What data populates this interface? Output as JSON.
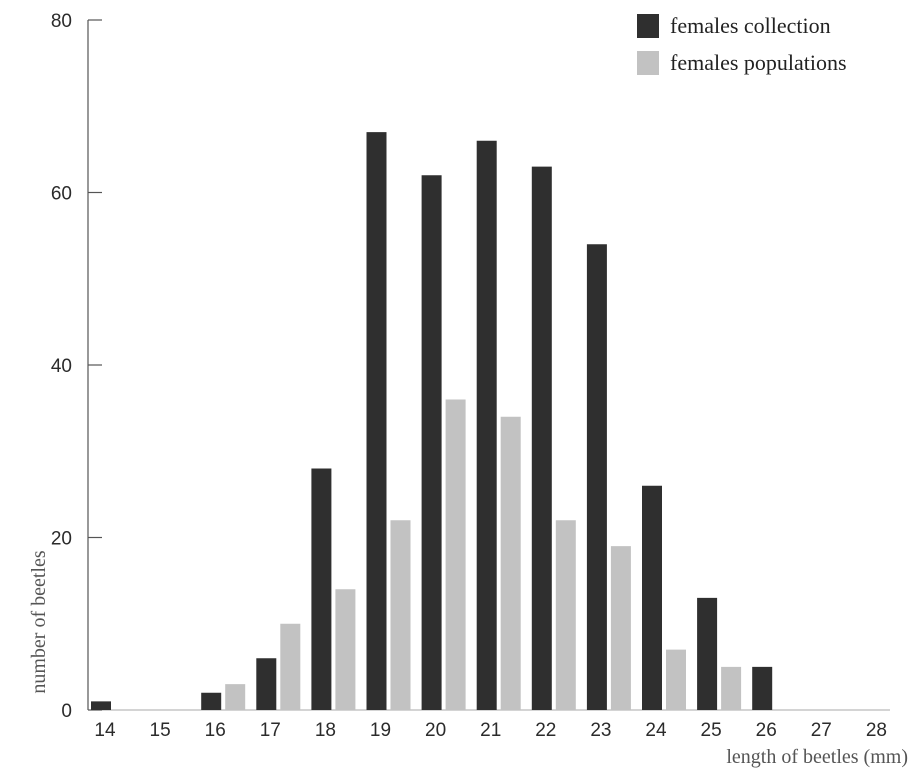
{
  "chart_data": {
    "type": "bar",
    "title": "",
    "xlabel": "length of beetles (mm)",
    "ylabel": "number of beetles",
    "ylim": [
      0,
      80
    ],
    "yticks": [
      0,
      20,
      40,
      60,
      80
    ],
    "categories": [
      "14",
      "15",
      "16",
      "17",
      "18",
      "19",
      "20",
      "21",
      "22",
      "23",
      "24",
      "25",
      "26",
      "27",
      "28"
    ],
    "series": [
      {
        "name": "females collection",
        "color": "#2f2f2f",
        "values": [
          1,
          0,
          2,
          6,
          28,
          67,
          62,
          66,
          63,
          54,
          26,
          13,
          5,
          0,
          0
        ]
      },
      {
        "name": "females populations",
        "color": "#c2c2c2",
        "values": [
          0,
          0,
          3,
          10,
          14,
          22,
          36,
          34,
          22,
          19,
          7,
          5,
          0,
          0,
          0
        ]
      }
    ],
    "grid": false,
    "legend_position": "top-right"
  }
}
